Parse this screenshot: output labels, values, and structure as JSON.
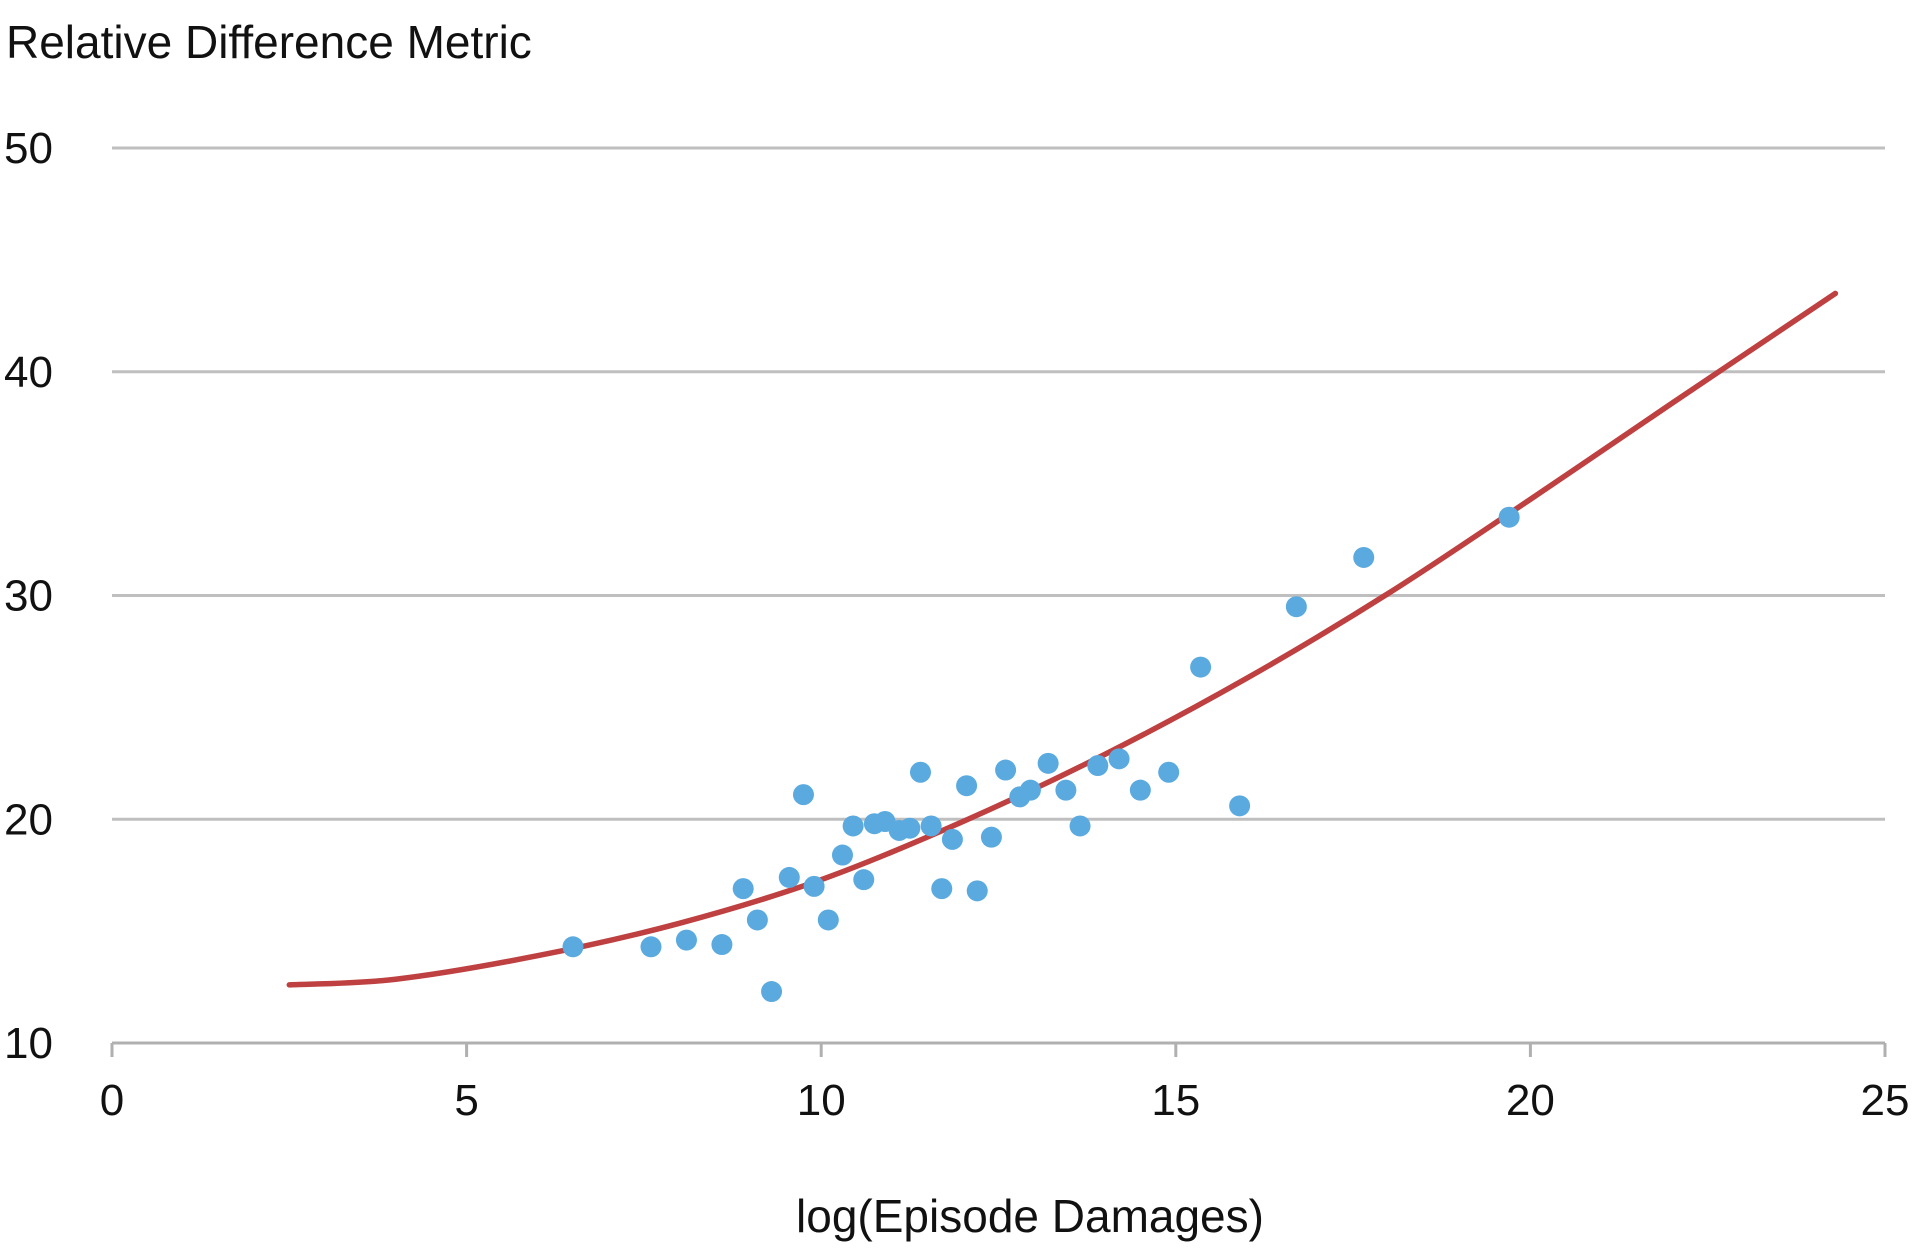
{
  "chart_data": {
    "type": "scatter",
    "title": "",
    "ylabel": "Relative Difference Metric",
    "xlabel": "log(Episode Damages)",
    "xlim": [
      0,
      25
    ],
    "ylim": [
      10,
      50
    ],
    "xticks": [
      0,
      5,
      10,
      15,
      20,
      25
    ],
    "yticks": [
      10,
      20,
      30,
      40,
      50
    ],
    "grid": "horizontal",
    "legend": "none",
    "colors": {
      "points": "#5aaae0",
      "fit": "#be4040",
      "grid": "#bfbfbf",
      "axis": "#b0b0b0"
    },
    "series": [
      {
        "kind": "points",
        "x": [
          6.5,
          7.6,
          8.1,
          8.6,
          8.9,
          9.1,
          9.3,
          9.55,
          9.75,
          9.9,
          10.1,
          10.3,
          10.45,
          10.6,
          10.75,
          10.9,
          11.1,
          11.25,
          11.4,
          11.55,
          11.7,
          11.85,
          12.05,
          12.2,
          12.4,
          12.6,
          12.8,
          12.95,
          13.2,
          13.45,
          13.65,
          13.9,
          14.2,
          14.5,
          14.9,
          15.35,
          15.9,
          16.7,
          17.65,
          19.7
        ],
        "y": [
          14.3,
          14.3,
          14.6,
          14.4,
          16.9,
          15.5,
          12.3,
          17.4,
          21.1,
          17.0,
          15.5,
          18.4,
          19.7,
          17.3,
          19.8,
          19.9,
          19.5,
          19.6,
          22.1,
          19.7,
          16.9,
          19.1,
          21.5,
          16.8,
          19.2,
          22.2,
          21.0,
          21.3,
          22.5,
          21.3,
          19.7,
          22.4,
          22.7,
          21.3,
          22.1,
          26.8,
          20.6,
          29.5,
          31.7,
          33.5
        ]
      },
      {
        "kind": "fit-line",
        "x": [
          2.5,
          4.0,
          6.0,
          8.0,
          10.0,
          12.0,
          14.0,
          16.0,
          18.0,
          20.0,
          22.0,
          24.3
        ],
        "y": [
          12.6,
          12.85,
          13.9,
          15.35,
          17.3,
          19.9,
          22.9,
          26.3,
          30.1,
          34.3,
          38.6,
          43.5
        ]
      }
    ]
  }
}
